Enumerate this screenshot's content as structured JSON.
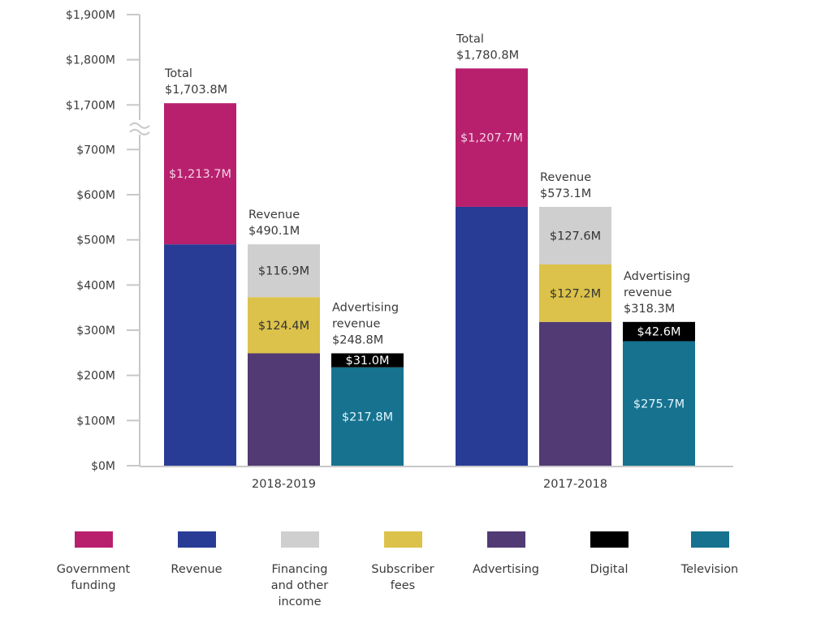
{
  "chart_data": {
    "type": "bar",
    "stacked": true,
    "title": "",
    "xlabel": "",
    "ylabel": "",
    "ylim": [
      0,
      1900
    ],
    "axis_break": {
      "from": 700,
      "to": 1700
    },
    "yticks": [
      {
        "value": 0,
        "label": "$0M"
      },
      {
        "value": 100,
        "label": "$100M"
      },
      {
        "value": 200,
        "label": "$200M"
      },
      {
        "value": 300,
        "label": "$300M"
      },
      {
        "value": 400,
        "label": "$400M"
      },
      {
        "value": 500,
        "label": "$500M"
      },
      {
        "value": 600,
        "label": "$600M"
      },
      {
        "value": 700,
        "label": "$700M"
      },
      {
        "value": 1700,
        "label": "$1,700M"
      },
      {
        "value": 1800,
        "label": "$1,800M"
      },
      {
        "value": 1900,
        "label": "$1,900M"
      }
    ],
    "grid": false,
    "legend_position": "bottom",
    "categories": [
      "2018-2019",
      "2017-2018"
    ],
    "groups": [
      {
        "category": "2018-2019",
        "bars": [
          {
            "name": "total",
            "annotation": [
              "Total",
              "$1,703.8M"
            ],
            "segments": [
              {
                "series": "Revenue",
                "value": 490.1,
                "label": ""
              },
              {
                "series": "Government funding",
                "value": 1213.7,
                "label": "$1,213.7M"
              }
            ]
          },
          {
            "name": "revenue",
            "annotation": [
              "Revenue",
              "$490.1M"
            ],
            "segments": [
              {
                "series": "Advertising",
                "value": 248.8,
                "label": ""
              },
              {
                "series": "Subscriber fees",
                "value": 124.4,
                "label": "$124.4M"
              },
              {
                "series": "Financing and other income",
                "value": 116.9,
                "label": "$116.9M"
              }
            ]
          },
          {
            "name": "advertising",
            "annotation": [
              "Advertising",
              "revenue",
              "$248.8M"
            ],
            "segments": [
              {
                "series": "Television",
                "value": 217.8,
                "label": "$217.8M"
              },
              {
                "series": "Digital",
                "value": 31.0,
                "label": "$31.0M"
              }
            ]
          }
        ]
      },
      {
        "category": "2017-2018",
        "bars": [
          {
            "name": "total",
            "annotation": [
              "Total",
              "$1,780.8M"
            ],
            "segments": [
              {
                "series": "Revenue",
                "value": 573.1,
                "label": ""
              },
              {
                "series": "Government funding",
                "value": 1207.7,
                "label": "$1,207.7M"
              }
            ]
          },
          {
            "name": "revenue",
            "annotation": [
              "Revenue",
              "$573.1M"
            ],
            "segments": [
              {
                "series": "Advertising",
                "value": 318.3,
                "label": ""
              },
              {
                "series": "Subscriber fees",
                "value": 127.2,
                "label": "$127.2M"
              },
              {
                "series": "Financing and other income",
                "value": 127.6,
                "label": "$127.6M"
              }
            ]
          },
          {
            "name": "advertising",
            "annotation": [
              "Advertising",
              "revenue",
              "$318.3M"
            ],
            "segments": [
              {
                "series": "Television",
                "value": 275.7,
                "label": "$275.7M"
              },
              {
                "series": "Digital",
                "value": 42.6,
                "label": "$42.6M"
              }
            ]
          }
        ]
      }
    ],
    "series": [
      {
        "name": "Government funding",
        "label": "Government\nfunding",
        "color": "#b8206e",
        "text_color": "#f4d2e4"
      },
      {
        "name": "Revenue",
        "label": "Revenue",
        "color": "#283c96",
        "text_color": "#ffffff"
      },
      {
        "name": "Financing and other income",
        "label": "Financing\nand other\nincome",
        "color": "#cfcfcf",
        "text_color": "#333333"
      },
      {
        "name": "Subscriber fees",
        "label": "Subscriber\nfees",
        "color": "#dcc24a",
        "text_color": "#333333"
      },
      {
        "name": "Advertising",
        "label": "Advertising",
        "color": "#523a74",
        "text_color": "#ffffff"
      },
      {
        "name": "Digital",
        "label": "Digital",
        "color": "#000000",
        "text_color": "#ffffff"
      },
      {
        "name": "Television",
        "label": "Television",
        "color": "#16728f",
        "text_color": "#e3f6fb"
      }
    ]
  }
}
